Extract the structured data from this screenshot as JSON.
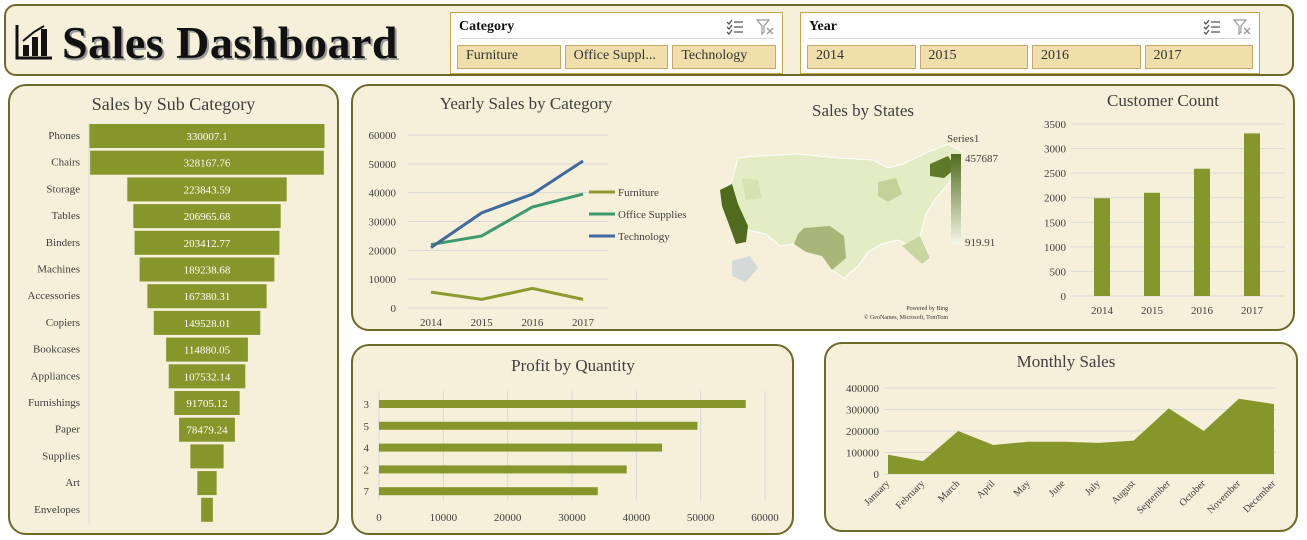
{
  "header": {
    "title": "Sales Dashboard",
    "logo_icon": "bar-chart-icon",
    "category_slicer": {
      "label": "Category",
      "items": [
        "Furniture",
        "Office Suppl...",
        "Technology"
      ]
    },
    "year_slicer": {
      "label": "Year",
      "items": [
        "2014",
        "2015",
        "2016",
        "2017"
      ]
    }
  },
  "colors": {
    "bar": "#86962a",
    "furniture": "#8d9a2e",
    "office": "#3c9a6e",
    "technology": "#3f6aa1",
    "panel_bg": "#f6efd9",
    "panel_border": "#6b6a27"
  },
  "chart_data": [
    {
      "id": "subcat",
      "type": "bar",
      "orientation": "funnel",
      "title": "Sales by Sub Category",
      "categories": [
        "Phones",
        "Chairs",
        "Storage",
        "Tables",
        "Binders",
        "Machines",
        "Accessories",
        "Copiers",
        "Bookcases",
        "Appliances",
        "Furnishings",
        "Paper",
        "Supplies",
        "Art",
        "Envelopes"
      ],
      "values": [
        330007.1,
        328167.76,
        223843.59,
        206965.68,
        203412.77,
        189238.68,
        167380.31,
        149528.01,
        114880.05,
        107532.14,
        91705.12,
        78479.24,
        46673.54,
        27118.79,
        16476.4
      ],
      "labels": [
        "330007.1",
        "328167.76",
        "223843.59",
        "206965.68",
        "203412.77",
        "189238.68",
        "167380.31",
        "149528.01",
        "114880.05",
        "107532.14",
        "91705.12",
        "78479.24",
        "",
        "",
        ""
      ]
    },
    {
      "id": "yearly",
      "type": "line",
      "title": "Yearly Sales by Category",
      "x": [
        "2014",
        "2015",
        "2016",
        "2017"
      ],
      "ylim": [
        0,
        60000
      ],
      "yticks": [
        "0",
        "10000",
        "20000",
        "30000",
        "40000",
        "50000",
        "60000"
      ],
      "series": [
        {
          "name": "Furniture",
          "values": [
            5500,
            3000,
            6800,
            3000
          ]
        },
        {
          "name": "Office Supplies",
          "values": [
            22000,
            25000,
            35000,
            39500
          ]
        },
        {
          "name": "Technology",
          "values": [
            21000,
            33000,
            39500,
            51000
          ]
        }
      ]
    },
    {
      "id": "states",
      "type": "heatmap",
      "title": "Sales by States",
      "legend_title": "Series1",
      "legend_max": "457687.68",
      "legend_min": "919.91",
      "attribution_line1": "Powered by Bing",
      "attribution_line2": "© GeoNames, Microsoft, TomTom"
    },
    {
      "id": "customers",
      "type": "bar",
      "title": "Customer Count",
      "categories": [
        "2014",
        "2015",
        "2016",
        "2017"
      ],
      "values": [
        1990,
        2100,
        2590,
        3310
      ],
      "ylim": [
        0,
        3500
      ],
      "yticks": [
        "0",
        "500",
        "1000",
        "1500",
        "2000",
        "2500",
        "3000",
        "3500"
      ]
    },
    {
      "id": "profit",
      "type": "bar",
      "orientation": "horizontal",
      "title": "Profit by Quantity",
      "categories": [
        "3",
        "5",
        "4",
        "2",
        "7"
      ],
      "values": [
        57000,
        49500,
        44000,
        38500,
        34000
      ],
      "xlim": [
        0,
        60000
      ],
      "xticks": [
        "0",
        "10000",
        "20000",
        "30000",
        "40000",
        "50000",
        "60000"
      ]
    },
    {
      "id": "monthly",
      "type": "area",
      "title": "Monthly Sales",
      "categories": [
        "January",
        "February",
        "March",
        "April",
        "May",
        "June",
        "July",
        "August",
        "September",
        "October",
        "November",
        "December"
      ],
      "values": [
        90000,
        60000,
        200000,
        135000,
        150000,
        150000,
        145000,
        155000,
        305000,
        200000,
        350000,
        325000
      ],
      "ylim": [
        0,
        400000
      ],
      "yticks": [
        "0",
        "100000",
        "200000",
        "300000",
        "400000"
      ]
    }
  ]
}
